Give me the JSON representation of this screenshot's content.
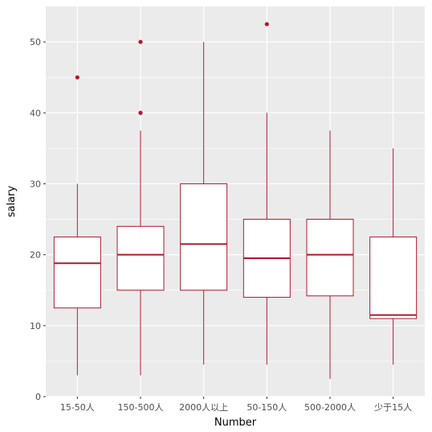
{
  "chart_data": {
    "type": "boxplot",
    "xlabel": "Number",
    "ylabel": "salary",
    "ylim": [
      0,
      55
    ],
    "yticks": [
      0,
      10,
      20,
      30,
      40,
      50
    ],
    "grid": true,
    "legend": "none",
    "colors": {
      "panel": "#ebebeb",
      "grid": "#ffffff",
      "box_stroke": "#b2182b",
      "box_fill": "#ffffff",
      "outlier": "#b2182b"
    },
    "categories": [
      "15-50人",
      "150-500人",
      "2000人以上",
      "50-150人",
      "500-2000人",
      "少于15人"
    ],
    "boxes": [
      {
        "category": "15-50人",
        "min": 3,
        "q1": 12.5,
        "median": 18.8,
        "q3": 22.5,
        "max": 30,
        "outliers": [
          45
        ]
      },
      {
        "category": "150-500人",
        "min": 3,
        "q1": 15,
        "median": 20,
        "q3": 24,
        "max": 37.5,
        "outliers": [
          40,
          50
        ]
      },
      {
        "category": "2000人以上",
        "min": 4.5,
        "q1": 15,
        "median": 21.5,
        "q3": 30,
        "max": 50,
        "outliers": []
      },
      {
        "category": "50-150人",
        "min": 4.5,
        "q1": 14,
        "median": 19.5,
        "q3": 25,
        "max": 40,
        "outliers": [
          52.5
        ]
      },
      {
        "category": "500-2000人",
        "min": 2.5,
        "q1": 14.2,
        "median": 20,
        "q3": 25,
        "max": 37.5,
        "outliers": []
      },
      {
        "category": "少于15人",
        "min": 4.5,
        "q1": 11,
        "median": 11.5,
        "q3": 22.5,
        "max": 35,
        "outliers": []
      }
    ]
  }
}
